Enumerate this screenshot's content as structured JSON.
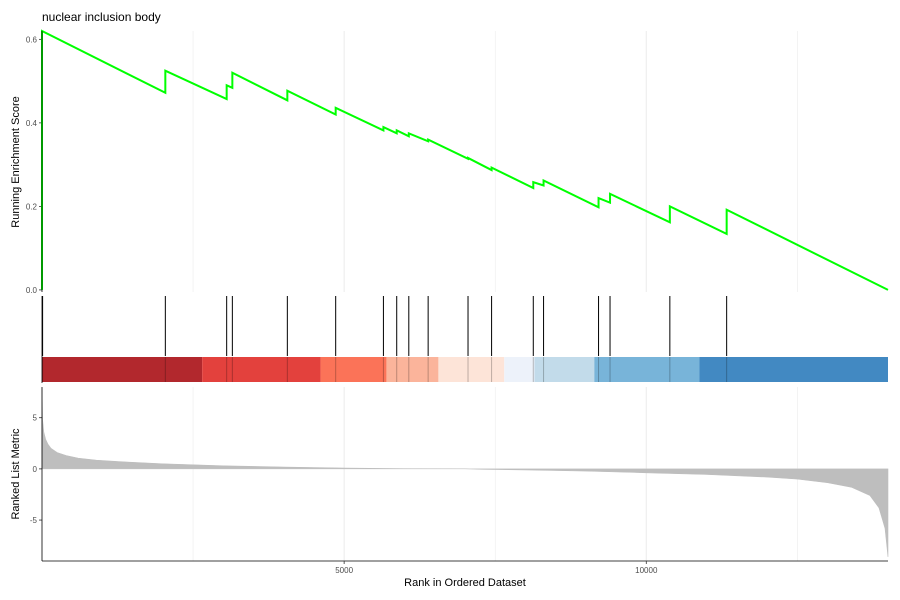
{
  "chart_data": {
    "type": "line",
    "title": "nuclear inclusion body",
    "xlabel": "Rank in Ordered Dataset",
    "x_range": [
      0,
      14000
    ],
    "x_ticks": [
      5000,
      10000
    ],
    "grid": "vertical",
    "colors": {
      "es_line": "#00ff00",
      "hit": "#000000",
      "metric_fill": "#bebebe",
      "axis": "#4d4d4d",
      "grid": "#ebebeb"
    },
    "panels": {
      "enrichment": {
        "ylabel": "Running Enrichment Score",
        "ylim": [
          0,
          0.62
        ],
        "yticks": [
          0.0,
          0.2,
          0.4,
          0.6
        ],
        "series": [
          {
            "x": [
              0,
              0,
              2041,
              2041,
              3056,
              3056,
              3150,
              3150,
              4060,
              4060,
              4860,
              4860,
              5650,
              5650,
              5870,
              5870,
              6070,
              6070,
              6390,
              6390,
              7050,
              7050,
              7440,
              7440,
              8130,
              8130,
              8300,
              8300,
              9210,
              9210,
              9400,
              9400,
              10390,
              10390,
              11330,
              11330,
              14000
            ],
            "y": [
              0,
              0.62,
              0.472,
              0.525,
              0.457,
              0.49,
              0.484,
              0.52,
              0.454,
              0.477,
              0.42,
              0.436,
              0.382,
              0.39,
              0.375,
              0.382,
              0.368,
              0.375,
              0.356,
              0.36,
              0.314,
              0.316,
              0.287,
              0.293,
              0.244,
              0.258,
              0.25,
              0.262,
              0.198,
              0.22,
              0.209,
              0.23,
              0.162,
              0.2,
              0.134,
              0.192,
              0
            ]
          }
        ]
      },
      "hits": {
        "positions": [
          0,
          2041,
          3056,
          3150,
          4060,
          4860,
          5650,
          5870,
          6070,
          6390,
          7050,
          7440,
          8130,
          8300,
          9210,
          9400,
          10390,
          11330
        ]
      },
      "color_strip": {
        "segments": [
          {
            "start": 0,
            "end": 2650,
            "color": "#b2282d"
          },
          {
            "start": 2650,
            "end": 4610,
            "color": "#e3413d"
          },
          {
            "start": 4610,
            "end": 5700,
            "color": "#fb7358"
          },
          {
            "start": 5700,
            "end": 6560,
            "color": "#fbb49b"
          },
          {
            "start": 6560,
            "end": 7650,
            "color": "#fde4d8"
          },
          {
            "start": 7650,
            "end": 8150,
            "color": "#edf2fa"
          },
          {
            "start": 8150,
            "end": 9140,
            "color": "#c2dbea"
          },
          {
            "start": 9140,
            "end": 10880,
            "color": "#78b4d9"
          },
          {
            "start": 10880,
            "end": 14000,
            "color": "#4289c2"
          }
        ]
      },
      "metric": {
        "ylabel": "Ranked List Metric",
        "ylim": [
          -9,
          8
        ],
        "yticks": [
          -5,
          0,
          5
        ],
        "curve": {
          "x": [
            0,
            10,
            30,
            60,
            100,
            150,
            250,
            400,
            600,
            900,
            1300,
            2000,
            3000,
            4000,
            5000,
            6000,
            7000,
            7300,
            8000,
            9000,
            10000,
            11000,
            12000,
            12500,
            13000,
            13400,
            13700,
            13850,
            13950,
            14000
          ],
          "y": [
            7.9,
            4.8,
            3.6,
            2.9,
            2.4,
            2.0,
            1.6,
            1.3,
            1.05,
            0.85,
            0.7,
            0.5,
            0.3,
            0.18,
            0.08,
            0.02,
            0.01,
            -0.04,
            -0.1,
            -0.22,
            -0.38,
            -0.55,
            -0.8,
            -1.0,
            -1.35,
            -1.8,
            -2.6,
            -3.8,
            -5.8,
            -8.6
          ]
        }
      }
    }
  }
}
